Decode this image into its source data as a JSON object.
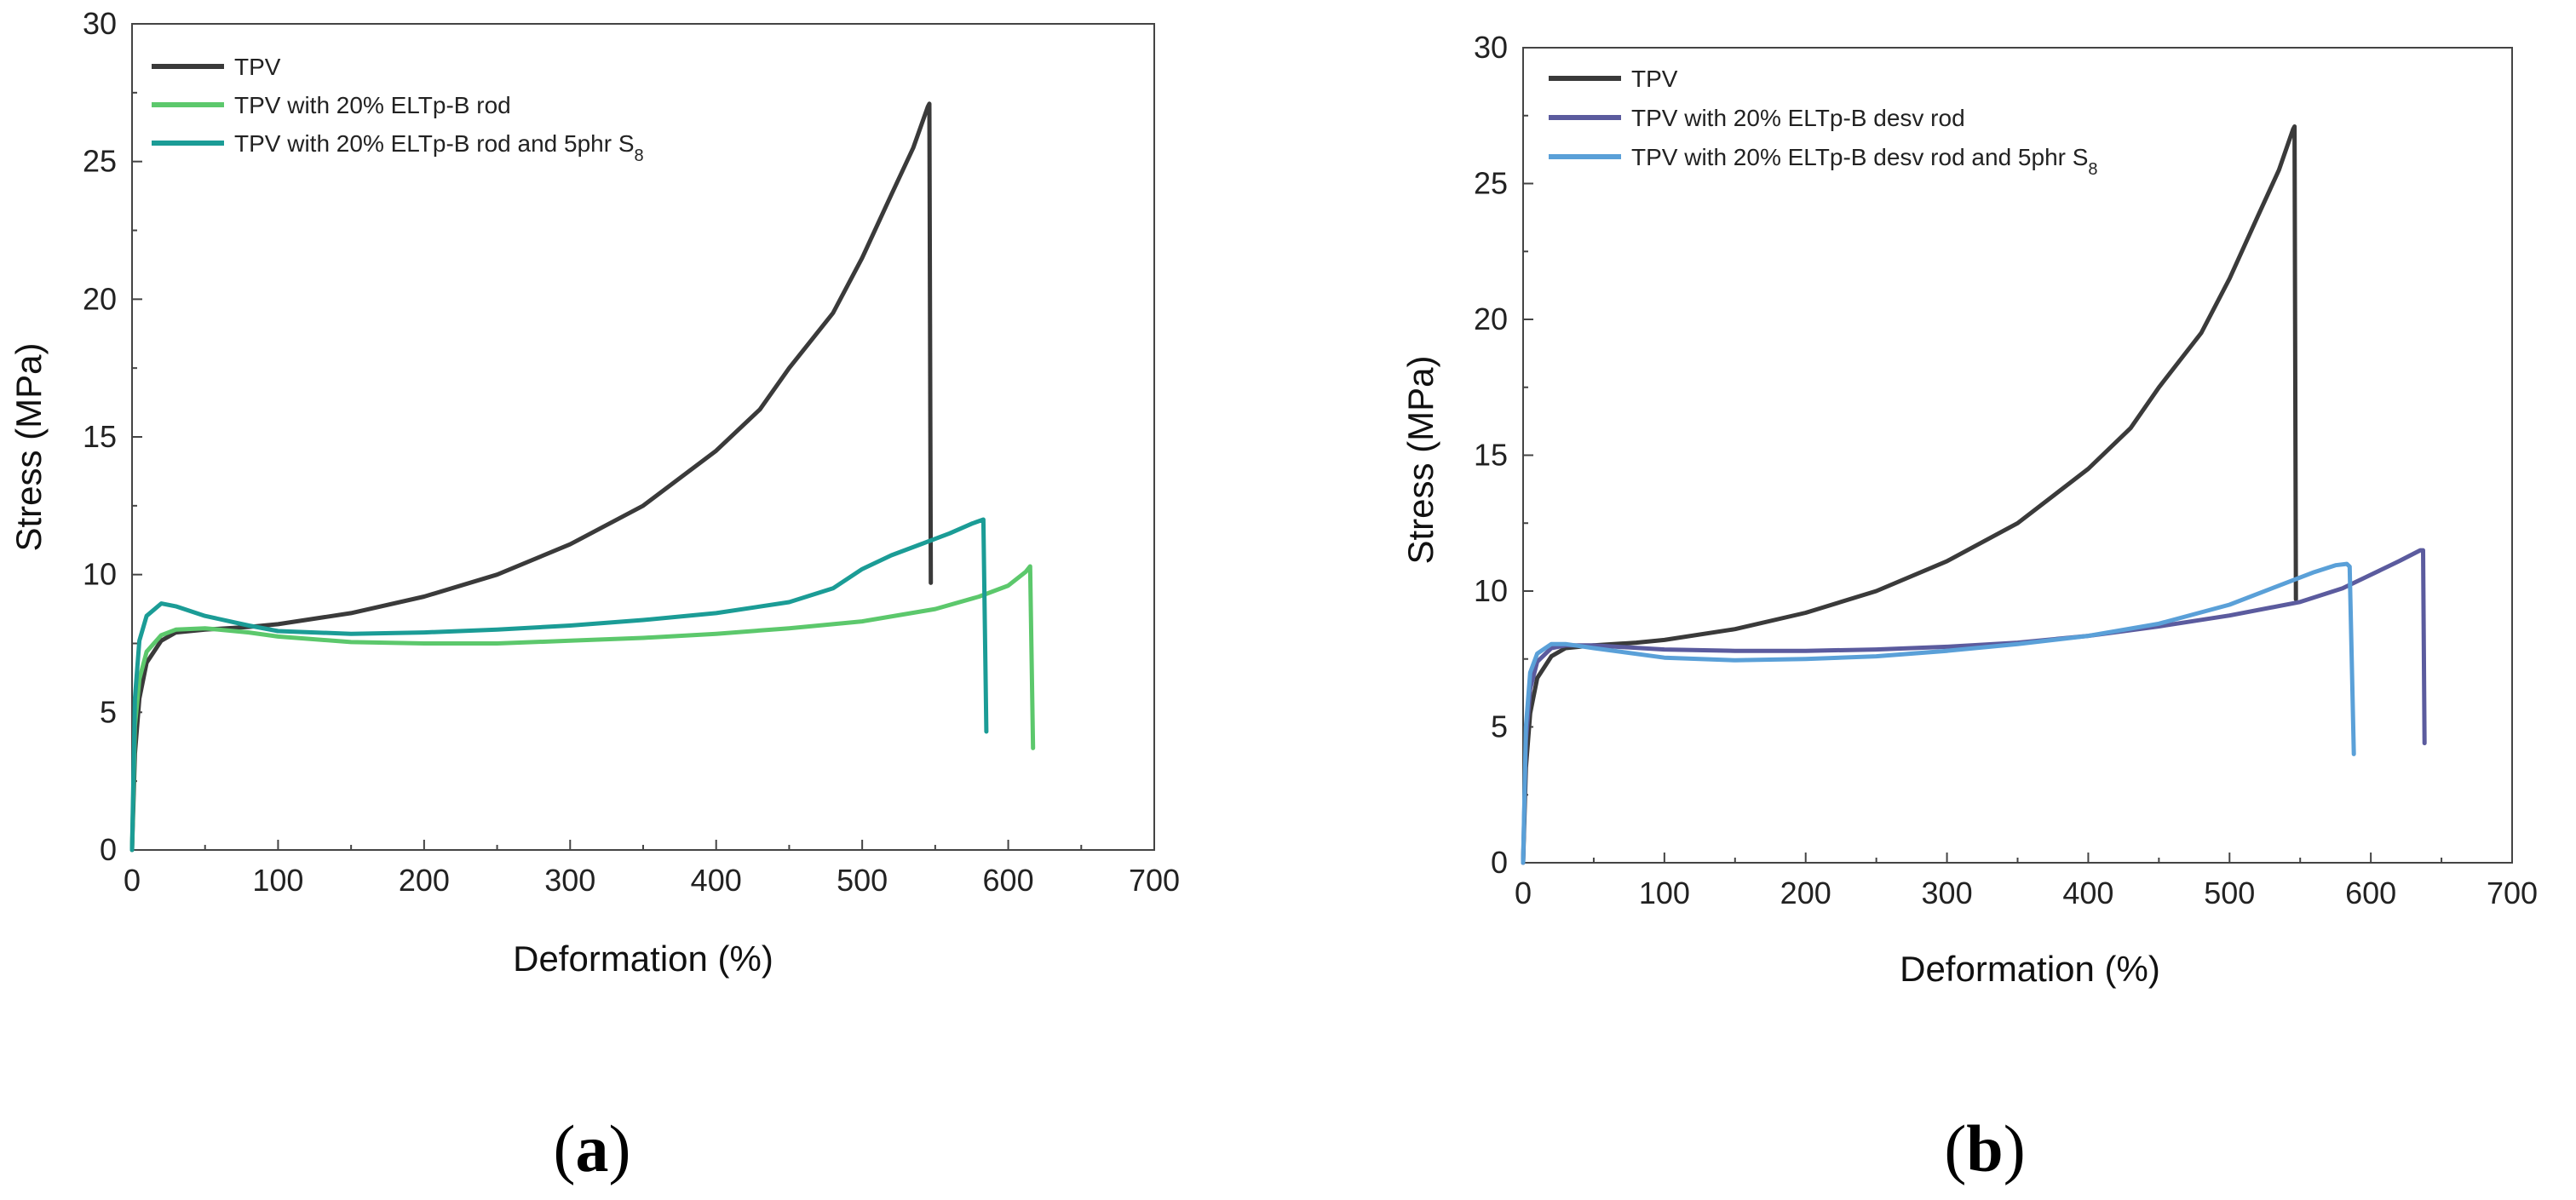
{
  "chart_data": [
    {
      "type": "line",
      "panel_label": "a",
      "xlabel": "Deformation (%)",
      "ylabel": "Stress (MPa)",
      "xlim": [
        0,
        700
      ],
      "ylim": [
        0,
        30
      ],
      "xticks": [
        0,
        100,
        200,
        300,
        400,
        500,
        600,
        700
      ],
      "yticks": [
        0,
        5,
        10,
        15,
        20,
        25,
        30
      ],
      "legend_position": "top-left",
      "series": [
        {
          "name": "TPV",
          "color": "#3a3a3a",
          "points": [
            [
              0,
              0
            ],
            [
              2,
              3.5
            ],
            [
              5,
              5.5
            ],
            [
              10,
              6.8
            ],
            [
              20,
              7.6
            ],
            [
              30,
              7.9
            ],
            [
              50,
              8.0
            ],
            [
              80,
              8.1
            ],
            [
              100,
              8.2
            ],
            [
              150,
              8.6
            ],
            [
              200,
              9.2
            ],
            [
              250,
              10.0
            ],
            [
              300,
              11.1
            ],
            [
              350,
              12.5
            ],
            [
              400,
              14.5
            ],
            [
              430,
              16.0
            ],
            [
              450,
              17.5
            ],
            [
              480,
              19.5
            ],
            [
              500,
              21.5
            ],
            [
              520,
              23.8
            ],
            [
              535,
              25.5
            ],
            [
              545,
              27.0
            ],
            [
              546,
              27.1
            ],
            [
              547,
              9.7
            ]
          ]
        },
        {
          "name": "TPV with 20% ELTp-B rod",
          "color": "#5cc86c",
          "points": [
            [
              0,
              0
            ],
            [
              2,
              4.5
            ],
            [
              5,
              6.2
            ],
            [
              10,
              7.2
            ],
            [
              20,
              7.8
            ],
            [
              30,
              8.0
            ],
            [
              50,
              8.05
            ],
            [
              80,
              7.9
            ],
            [
              100,
              7.75
            ],
            [
              150,
              7.55
            ],
            [
              200,
              7.5
            ],
            [
              250,
              7.5
            ],
            [
              300,
              7.6
            ],
            [
              350,
              7.7
            ],
            [
              400,
              7.85
            ],
            [
              450,
              8.05
            ],
            [
              500,
              8.3
            ],
            [
              550,
              8.75
            ],
            [
              580,
              9.2
            ],
            [
              600,
              9.6
            ],
            [
              612,
              10.1
            ],
            [
              615,
              10.3
            ],
            [
              617,
              3.7
            ]
          ]
        },
        {
          "name": "TPV with 20% ELTp-B rod and 5phr S8",
          "color": "#1b9c96",
          "points": [
            [
              0,
              0
            ],
            [
              2,
              5.5
            ],
            [
              5,
              7.6
            ],
            [
              10,
              8.5
            ],
            [
              20,
              8.95
            ],
            [
              30,
              8.85
            ],
            [
              50,
              8.5
            ],
            [
              80,
              8.15
            ],
            [
              100,
              7.95
            ],
            [
              150,
              7.85
            ],
            [
              200,
              7.9
            ],
            [
              250,
              8.0
            ],
            [
              300,
              8.15
            ],
            [
              350,
              8.35
            ],
            [
              400,
              8.6
            ],
            [
              450,
              9.0
            ],
            [
              480,
              9.5
            ],
            [
              500,
              10.2
            ],
            [
              520,
              10.7
            ],
            [
              540,
              11.1
            ],
            [
              560,
              11.5
            ],
            [
              575,
              11.85
            ],
            [
              583,
              12.0
            ],
            [
              585,
              4.3
            ]
          ]
        }
      ]
    },
    {
      "type": "line",
      "panel_label": "b",
      "xlabel": "Deformation (%)",
      "ylabel": "Stress (MPa)",
      "xlim": [
        0,
        700
      ],
      "ylim": [
        0,
        30
      ],
      "xticks": [
        0,
        100,
        200,
        300,
        400,
        500,
        600,
        700
      ],
      "yticks": [
        0,
        5,
        10,
        15,
        20,
        25,
        30
      ],
      "legend_position": "top-left",
      "series": [
        {
          "name": "TPV",
          "color": "#3a3a3a",
          "points": [
            [
              0,
              0
            ],
            [
              2,
              3.5
            ],
            [
              5,
              5.5
            ],
            [
              10,
              6.8
            ],
            [
              20,
              7.6
            ],
            [
              30,
              7.9
            ],
            [
              50,
              8.0
            ],
            [
              80,
              8.1
            ],
            [
              100,
              8.2
            ],
            [
              150,
              8.6
            ],
            [
              200,
              9.2
            ],
            [
              250,
              10.0
            ],
            [
              300,
              11.1
            ],
            [
              350,
              12.5
            ],
            [
              400,
              14.5
            ],
            [
              430,
              16.0
            ],
            [
              450,
              17.5
            ],
            [
              480,
              19.5
            ],
            [
              500,
              21.5
            ],
            [
              520,
              23.8
            ],
            [
              535,
              25.5
            ],
            [
              545,
              27.0
            ],
            [
              546,
              27.1
            ],
            [
              547,
              9.7
            ]
          ]
        },
        {
          "name": "TPV with 20% ELTp-B desv rod",
          "color": "#5b5b9e",
          "points": [
            [
              0,
              0
            ],
            [
              2,
              4.5
            ],
            [
              5,
              6.4
            ],
            [
              10,
              7.4
            ],
            [
              20,
              7.9
            ],
            [
              30,
              8.0
            ],
            [
              50,
              8.0
            ],
            [
              100,
              7.85
            ],
            [
              150,
              7.8
            ],
            [
              200,
              7.8
            ],
            [
              250,
              7.85
            ],
            [
              300,
              7.95
            ],
            [
              350,
              8.1
            ],
            [
              400,
              8.35
            ],
            [
              450,
              8.7
            ],
            [
              500,
              9.1
            ],
            [
              550,
              9.6
            ],
            [
              580,
              10.1
            ],
            [
              600,
              10.6
            ],
            [
              620,
              11.1
            ],
            [
              635,
              11.5
            ],
            [
              637,
              11.5
            ],
            [
              638,
              4.4
            ]
          ]
        },
        {
          "name": "TPV with 20% ELTp-B desv rod and 5phr S8",
          "color": "#5aa0d8",
          "points": [
            [
              0,
              0
            ],
            [
              2,
              5.0
            ],
            [
              5,
              7.0
            ],
            [
              10,
              7.7
            ],
            [
              20,
              8.05
            ],
            [
              30,
              8.05
            ],
            [
              50,
              7.9
            ],
            [
              100,
              7.55
            ],
            [
              150,
              7.45
            ],
            [
              200,
              7.5
            ],
            [
              250,
              7.6
            ],
            [
              300,
              7.8
            ],
            [
              350,
              8.05
            ],
            [
              400,
              8.35
            ],
            [
              450,
              8.8
            ],
            [
              500,
              9.5
            ],
            [
              530,
              10.1
            ],
            [
              560,
              10.7
            ],
            [
              575,
              10.95
            ],
            [
              583,
              11.0
            ],
            [
              585,
              10.9
            ],
            [
              588,
              4.0
            ]
          ]
        }
      ]
    }
  ]
}
